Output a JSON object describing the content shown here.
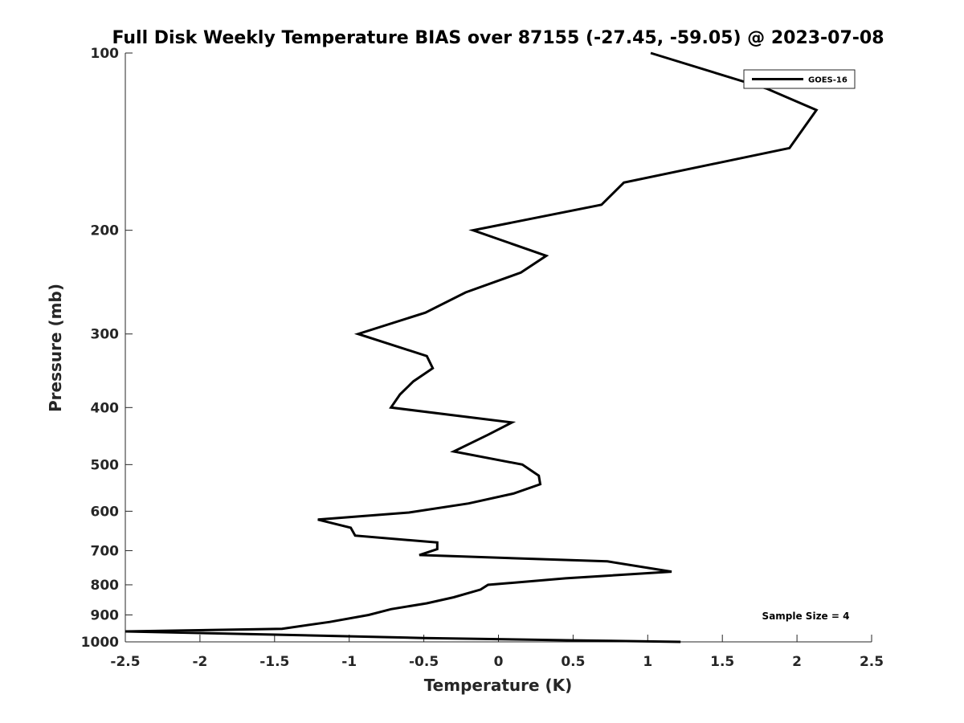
{
  "chart_data": {
    "type": "line",
    "title": "Full Disk Weekly Temperature BIAS over 87155 (-27.45, -59.05) @ 2023-07-08",
    "xlabel": "Temperature (K)",
    "ylabel": "Pressure (mb)",
    "xlim": [
      -2.5,
      2.5
    ],
    "ylim": [
      100,
      1000
    ],
    "yscale": "log",
    "y_reversed": true,
    "grid": false,
    "x_ticks": [
      -2.5,
      -2,
      -1.5,
      -1,
      -0.5,
      0,
      0.5,
      1,
      1.5,
      2,
      2.5
    ],
    "x_tick_labels": [
      "-2.5",
      "-2",
      "-1.5",
      "-1",
      "-0.5",
      "0",
      "0.5",
      "1",
      "1.5",
      "2",
      "2.5"
    ],
    "y_ticks": [
      100,
      200,
      300,
      400,
      500,
      600,
      700,
      800,
      900,
      1000
    ],
    "y_tick_labels": [
      "100",
      "200",
      "300",
      "400",
      "500",
      "600",
      "700",
      "800",
      "900",
      "1000"
    ],
    "legend_position": "top-right",
    "series": [
      {
        "name": "GOES-16",
        "color": "#000000",
        "points": [
          {
            "t": 1.02,
            "p": 100
          },
          {
            "t": 1.8,
            "p": 115
          },
          {
            "t": 2.13,
            "p": 125
          },
          {
            "t": 1.95,
            "p": 145
          },
          {
            "t": 0.84,
            "p": 166
          },
          {
            "t": 0.69,
            "p": 181
          },
          {
            "t": -0.17,
            "p": 200
          },
          {
            "t": 0.32,
            "p": 221
          },
          {
            "t": 0.15,
            "p": 236
          },
          {
            "t": -0.22,
            "p": 255
          },
          {
            "t": -0.49,
            "p": 276
          },
          {
            "t": -0.94,
            "p": 300
          },
          {
            "t": -0.48,
            "p": 327
          },
          {
            "t": -0.44,
            "p": 343
          },
          {
            "t": -0.57,
            "p": 361
          },
          {
            "t": -0.66,
            "p": 380
          },
          {
            "t": -0.72,
            "p": 400
          },
          {
            "t": 0.09,
            "p": 424
          },
          {
            "t": -0.07,
            "p": 445
          },
          {
            "t": -0.3,
            "p": 475
          },
          {
            "t": 0.16,
            "p": 500
          },
          {
            "t": 0.27,
            "p": 522
          },
          {
            "t": 0.28,
            "p": 540
          },
          {
            "t": 0.1,
            "p": 560
          },
          {
            "t": -0.2,
            "p": 582
          },
          {
            "t": -0.6,
            "p": 603
          },
          {
            "t": -1.21,
            "p": 620
          },
          {
            "t": -0.99,
            "p": 640
          },
          {
            "t": -0.96,
            "p": 660
          },
          {
            "t": -0.41,
            "p": 678
          },
          {
            "t": -0.41,
            "p": 696
          },
          {
            "t": -0.53,
            "p": 712
          },
          {
            "t": 0.73,
            "p": 730
          },
          {
            "t": 1.16,
            "p": 760
          },
          {
            "t": 0.45,
            "p": 780
          },
          {
            "t": -0.07,
            "p": 800
          },
          {
            "t": -0.12,
            "p": 815
          },
          {
            "t": -0.3,
            "p": 840
          },
          {
            "t": -0.48,
            "p": 860
          },
          {
            "t": -0.72,
            "p": 880
          },
          {
            "t": -0.87,
            "p": 900
          },
          {
            "t": -1.13,
            "p": 925
          },
          {
            "t": -1.45,
            "p": 950
          },
          {
            "t": -2.5,
            "p": 960
          },
          {
            "t": -1.5,
            "p": 972
          },
          {
            "t": -0.5,
            "p": 985
          },
          {
            "t": 0.5,
            "p": 994
          },
          {
            "t": 1.22,
            "p": 1000
          }
        ]
      }
    ],
    "annotations": [
      "Sample Size = 4"
    ]
  }
}
